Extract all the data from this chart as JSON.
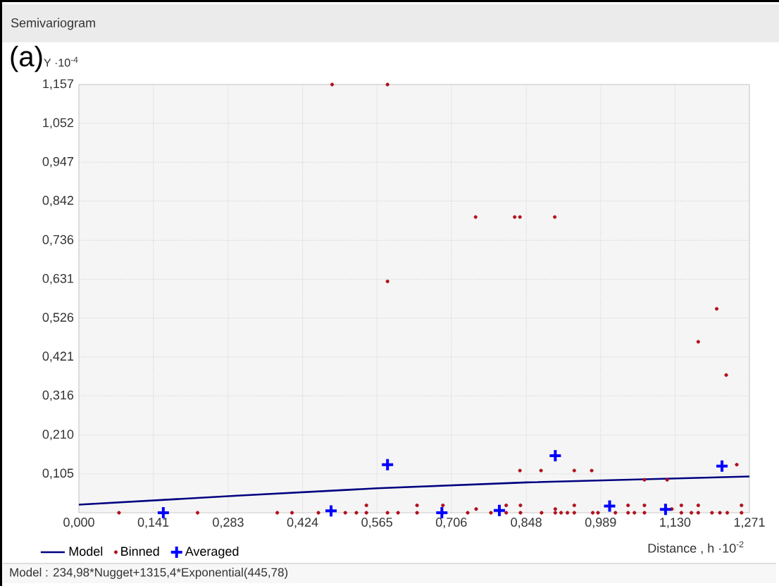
{
  "chart_data": {
    "type": "scatter",
    "title": "Semivariogram",
    "xlabel": "Distance , h ·10$^{-2}$",
    "ylabel": "Y ·10$^{-4}$",
    "annotations": [
      "(a)",
      "Model : 234,98*Nugget+1315,4*Exponential(445,78)"
    ],
    "xlim": [
      0,
      1.271
    ],
    "ylim": [
      0,
      1.157
    ],
    "xticks": [
      {
        "value": 0,
        "label": "0,000"
      },
      {
        "value": 0.141,
        "label": "0,141"
      },
      {
        "value": 0.283,
        "label": "0,283"
      },
      {
        "value": 0.424,
        "label": "0,424"
      },
      {
        "value": 0.565,
        "label": "0,565"
      },
      {
        "value": 0.706,
        "label": "0,706"
      },
      {
        "value": 0.848,
        "label": "0,848"
      },
      {
        "value": 0.989,
        "label": "0,989"
      },
      {
        "value": 1.13,
        "label": "1,130"
      },
      {
        "value": 1.271,
        "label": "1,271"
      }
    ],
    "yticks": [
      {
        "value": 0.105,
        "label": "0,105"
      },
      {
        "value": 0.21,
        "label": "0,210"
      },
      {
        "value": 0.316,
        "label": "0,316"
      },
      {
        "value": 0.421,
        "label": "0,421"
      },
      {
        "value": 0.526,
        "label": "0,526"
      },
      {
        "value": 0.631,
        "label": "0,631"
      },
      {
        "value": 0.736,
        "label": "0,736"
      },
      {
        "value": 0.842,
        "label": "0,842"
      },
      {
        "value": 0.947,
        "label": "0,947"
      },
      {
        "value": 1.052,
        "label": "1,052"
      },
      {
        "value": 1.157,
        "label": "1,157"
      }
    ],
    "grid": true,
    "legend": "bottom left",
    "series": [
      {
        "name": "Model",
        "type": "line",
        "color": "#000080",
        "marker": "none",
        "x": [
          0,
          0.3,
          0.565,
          0.85,
          1.271
        ],
        "values": [
          0.022,
          0.046,
          0.066,
          0.082,
          0.098
        ]
      },
      {
        "name": "Binned",
        "type": "scatter",
        "color": "#b0101c",
        "marker": "circle",
        "x": [
          0.48,
          0.585,
          0.585,
          0.752,
          0.826,
          0.836,
          0.902,
          1.209,
          1.174,
          1.227,
          0.836,
          0.876,
          0.939,
          0.972,
          1.247,
          1.072,
          1.115,
          0.076,
          0.225,
          0.376,
          0.404,
          0.454,
          0.505,
          0.526,
          0.545,
          0.545,
          0.585,
          0.605,
          0.641,
          0.641,
          0.69,
          0.69,
          0.737,
          0.753,
          0.781,
          0.81,
          0.81,
          0.837,
          0.837,
          0.877,
          0.903,
          0.903,
          0.914,
          0.926,
          0.939,
          0.939,
          0.974,
          0.984,
          1.017,
          1.041,
          1.041,
          1.053,
          1.072,
          1.072,
          1.124,
          1.142,
          1.142,
          1.161,
          1.174,
          1.174,
          1.2,
          1.215,
          1.229,
          1.256,
          1.256
        ],
        "values": [
          1.157,
          1.157,
          0.625,
          0.799,
          0.799,
          0.799,
          0.799,
          0.551,
          0.462,
          0.372,
          0.114,
          0.114,
          0.114,
          0.114,
          0.13,
          0.089,
          0.089,
          0,
          0,
          0,
          0,
          0,
          0,
          0,
          0,
          0.02,
          0,
          0,
          0,
          0.02,
          0,
          0.02,
          0,
          0.01,
          0,
          0,
          0.02,
          0,
          0.02,
          0,
          0,
          0.01,
          0,
          0,
          0,
          0.02,
          0,
          0,
          0,
          0,
          0.02,
          0,
          0,
          0.02,
          0.01,
          0,
          0.02,
          0,
          0,
          0.02,
          0,
          0,
          0,
          0,
          0.02
        ]
      },
      {
        "name": "Averaged",
        "type": "scatter",
        "color": "#0000ff",
        "marker": "cross",
        "x": [
          0.16,
          0.478,
          0.585,
          0.688,
          0.797,
          0.903,
          1.006,
          1.112,
          1.219
        ],
        "values": [
          0,
          0.005,
          0.13,
          0,
          0.006,
          0.154,
          0.018,
          0.009,
          0.126
        ]
      }
    ]
  }
}
